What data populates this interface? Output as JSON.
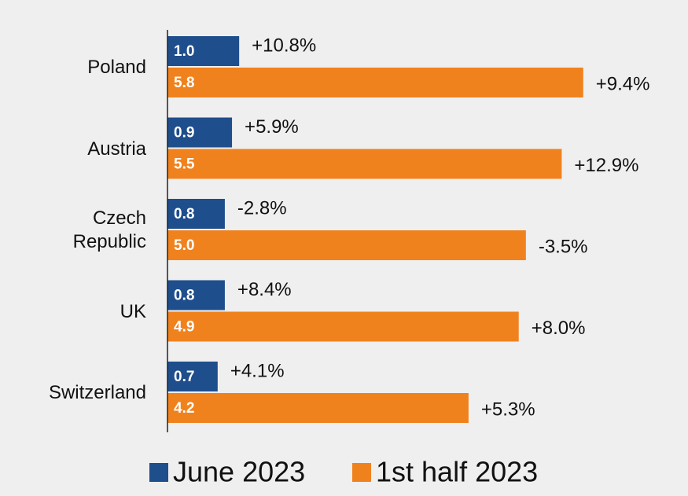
{
  "chart_data": {
    "type": "bar",
    "orientation": "horizontal",
    "categories": [
      "Poland",
      "Austria",
      "Czech Republic",
      "UK",
      "Switzerland"
    ],
    "series": [
      {
        "name": "June 2023",
        "color": "#1f4e8c",
        "values": [
          1.0,
          0.9,
          0.8,
          0.8,
          0.7
        ],
        "value_labels": [
          "1.0",
          "0.9",
          "0.8",
          "0.8",
          "0.7"
        ],
        "change_labels": [
          "+10.8%",
          "+5.9%",
          "-2.8%",
          "+8.4%",
          "+4.1%"
        ]
      },
      {
        "name": "1st half 2023",
        "color": "#f0821e",
        "values": [
          5.8,
          5.5,
          5.0,
          4.9,
          4.2
        ],
        "value_labels": [
          "5.8",
          "5.5",
          "5.0",
          "4.9",
          "4.2"
        ],
        "change_labels": [
          "+9.4%",
          "+12.9%",
          "-3.5%",
          "+8.0%",
          "+5.3%"
        ]
      }
    ],
    "xlim": [
      0,
      6
    ],
    "legend": "bottom"
  }
}
